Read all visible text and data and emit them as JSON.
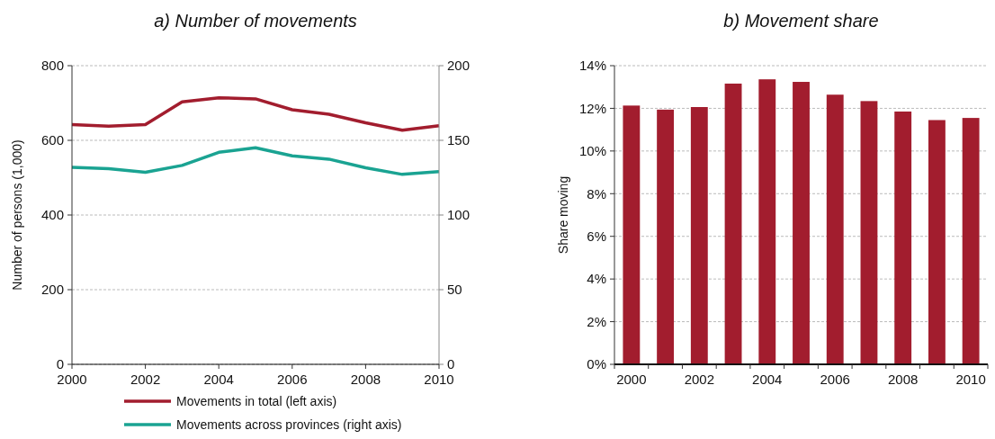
{
  "chart_data": [
    {
      "type": "line",
      "title": "a) Number of movements",
      "ylabel": "Number of persons  (1,000)",
      "x": [
        2000,
        2001,
        2002,
        2003,
        2004,
        2005,
        2006,
        2007,
        2008,
        2009,
        2010
      ],
      "series": [
        {
          "name": "Movements in total (left axis)",
          "color": "#a21d2e",
          "values": [
            642,
            638,
            642,
            703,
            714,
            711,
            682,
            670,
            647,
            627,
            639
          ]
        },
        {
          "name": "Movements across provinces (right axis)",
          "color": "#1aa392",
          "axis": "y2",
          "values": [
            132,
            131,
            128.6,
            133.2,
            142,
            145,
            139.6,
            137.4,
            131.6,
            127.2,
            129
          ]
        }
      ],
      "xlim": [
        2000,
        2010
      ],
      "xticks": [
        2000,
        2002,
        2004,
        2006,
        2008,
        2010
      ],
      "ylim": [
        0,
        800
      ],
      "yticks": [
        0,
        200,
        400,
        600,
        800
      ],
      "y2lim": [
        0,
        200
      ],
      "y2ticks": [
        0,
        50,
        100,
        150,
        200
      ],
      "grid": "y",
      "legend": "bottom",
      "line_style": "solid",
      "marker": "none"
    },
    {
      "type": "bar",
      "title": "b) Movement share",
      "ylabel": "Share moving",
      "categories": [
        "2000",
        null,
        "2002",
        null,
        "2004",
        null,
        "2006",
        null,
        "2008",
        null,
        "2010"
      ],
      "values": [
        12.13,
        11.94,
        12.06,
        13.16,
        13.36,
        13.24,
        12.64,
        12.34,
        11.85,
        11.45,
        11.55
      ],
      "color": "#a21d2e",
      "ylim": [
        0,
        14
      ],
      "yticks": [
        {
          "value": 0,
          "label": "0%"
        },
        {
          "value": 2,
          "label": "2%"
        },
        {
          "value": 4,
          "label": "4%"
        },
        {
          "value": 6,
          "label": "6%"
        },
        {
          "value": 8,
          "label": "8%"
        },
        {
          "value": 10,
          "label": "10%"
        },
        {
          "value": 12,
          "label": "12%"
        },
        {
          "value": 14,
          "label": "14%"
        }
      ],
      "grid": "y"
    }
  ]
}
